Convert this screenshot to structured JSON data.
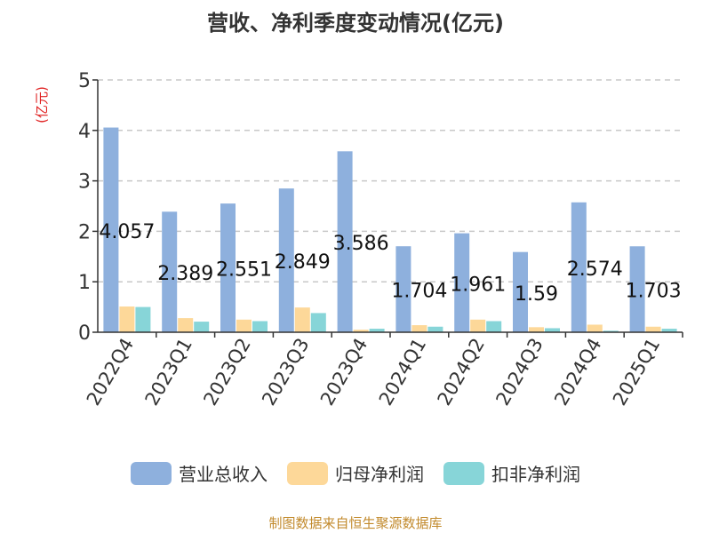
{
  "chart_data": {
    "type": "bar",
    "title": "营收、净利季度变动情况(亿元)",
    "ylabel": "(亿元)",
    "xlabel": "",
    "ylim": [
      0,
      5
    ],
    "yticks": [
      0,
      1,
      2,
      3,
      4,
      5
    ],
    "grid": true,
    "legend_position": "bottom",
    "categories": [
      "2022Q4",
      "2023Q1",
      "2023Q2",
      "2023Q3",
      "2023Q4",
      "2024Q1",
      "2024Q2",
      "2024Q3",
      "2024Q4",
      "2025Q1"
    ],
    "series": [
      {
        "name": "营业总收入",
        "color": "#8eb0dd",
        "values": [
          4.057,
          2.389,
          2.551,
          2.849,
          3.586,
          1.704,
          1.961,
          1.59,
          2.574,
          1.703
        ],
        "labels": [
          "4.057",
          "2.389",
          "2.551",
          "2.849",
          "3.586",
          "1.704",
          "1.961",
          "1.59",
          "2.574",
          "1.703"
        ]
      },
      {
        "name": "归母净利润",
        "color": "#fdd899",
        "values": [
          0.51,
          0.28,
          0.25,
          0.49,
          0.05,
          0.14,
          0.25,
          0.1,
          0.15,
          0.11
        ]
      },
      {
        "name": "扣非净利润",
        "color": "#87d5d8",
        "values": [
          0.5,
          0.21,
          0.22,
          0.38,
          0.07,
          0.11,
          0.22,
          0.08,
          0.03,
          0.07
        ]
      }
    ],
    "source_note": "制图数据来自恒生聚源数据库"
  }
}
